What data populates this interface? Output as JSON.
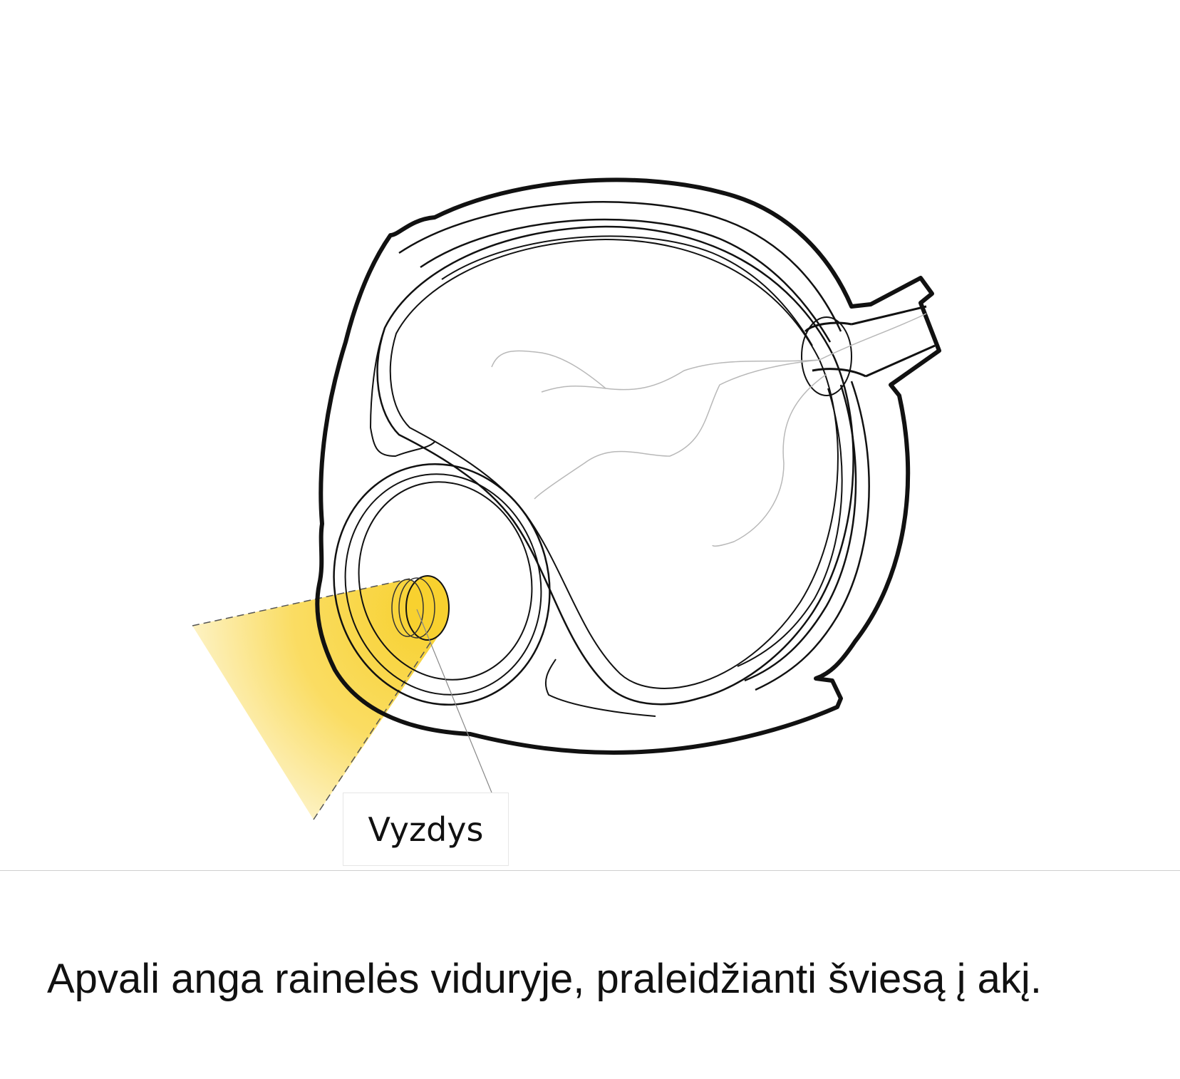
{
  "diagram": {
    "label": "Vyzdys",
    "highlight_color": "#f8d12f",
    "outline_color": "#111111",
    "vessel_color": "#b8b8b8"
  },
  "caption": {
    "text": "Apvali anga rainelės viduryje, praleidžianti šviesą į akį."
  }
}
